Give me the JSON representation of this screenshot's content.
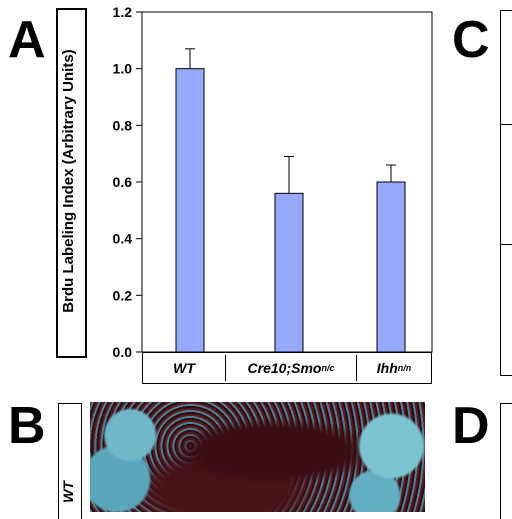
{
  "panels": {
    "a_letter": "A",
    "b_letter": "B",
    "c_letter": "C",
    "d_letter": "D"
  },
  "micrograph": {
    "side_label": "WT"
  },
  "colors": {
    "bar_fill": "#95a8fb",
    "bar_stroke": "#000000",
    "axis": "#000000"
  },
  "chart_data": {
    "type": "bar",
    "ylabel": "Brdu Labeling Index (Arbitrary Units)",
    "xlabel": "",
    "ylim": [
      0,
      1.2
    ],
    "yticks": [
      "0.0",
      "0.2",
      "0.4",
      "0.6",
      "0.8",
      "1.0",
      "1.2"
    ],
    "categories": [
      {
        "main": "WT",
        "sup": ""
      },
      {
        "main": "Cre10;Smo",
        "sup": "n/c"
      },
      {
        "main": "Ihh",
        "sup": "n/n"
      }
    ],
    "values": [
      1.0,
      0.56,
      0.6
    ],
    "errors": [
      0.07,
      0.13,
      0.06
    ],
    "grid": false
  }
}
